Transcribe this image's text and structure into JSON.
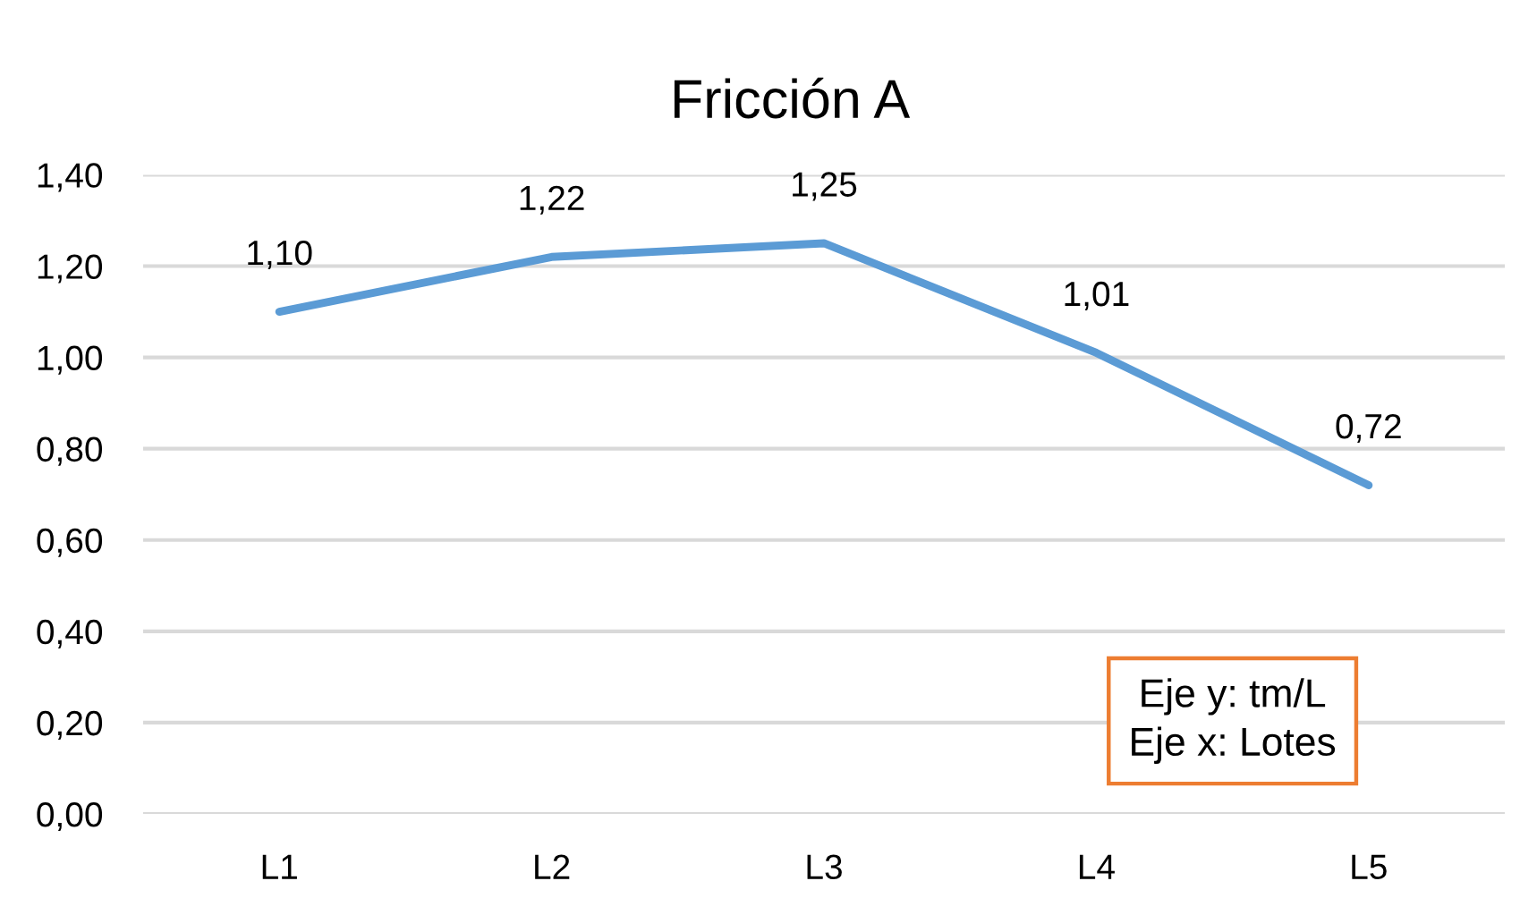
{
  "chart_data": {
    "type": "line",
    "title": "Fricción A",
    "categories": [
      "L1",
      "L2",
      "L3",
      "L4",
      "L5"
    ],
    "series": [
      {
        "color": "#5b9bd5",
        "values": [
          1.1,
          1.22,
          1.25,
          1.01,
          0.72
        ],
        "value_labels": [
          "1,10",
          "1,22",
          "1,25",
          "1,01",
          "0,72"
        ]
      }
    ],
    "ylim": [
      0,
      1.4
    ],
    "yticks": [
      {
        "value": 0,
        "label": "0,00"
      },
      {
        "value": 0.2,
        "label": "0,20"
      },
      {
        "value": 0.4,
        "label": "0,40"
      },
      {
        "value": 0.6,
        "label": "0,60"
      },
      {
        "value": 0.8,
        "label": "0,80"
      },
      {
        "value": 1.0,
        "label": "1,00"
      },
      {
        "value": 1.2,
        "label": "1,20"
      },
      {
        "value": 1.4,
        "label": "1,40"
      }
    ],
    "grid": "y",
    "marker": "none",
    "line_style": "solid",
    "annotations": [
      "Eje y: tm/L\nEje x: Lotes"
    ]
  }
}
